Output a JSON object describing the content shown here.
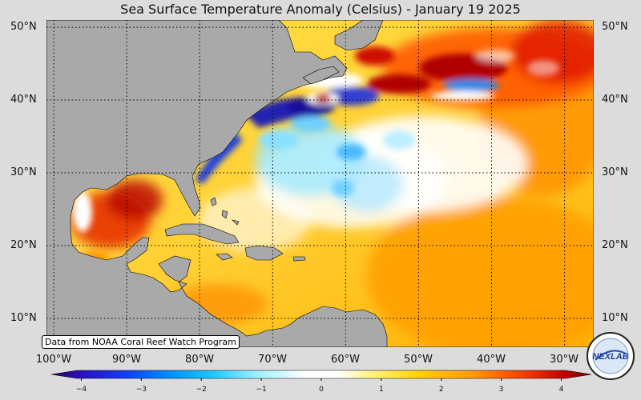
{
  "title": "Sea Surface Temperature Anomaly (Celsius) - January 19 2025",
  "credit": "Data from NOAA Coral Reef Watch Program",
  "logo_text": "NEXLAB",
  "map": {
    "projection": "plate-carree",
    "lon_range": [
      -101,
      -26
    ],
    "lat_range": [
      6,
      51
    ],
    "grid": "dotted",
    "land_color": "#a9a9a9",
    "lat_labels": [
      "50°N",
      "40°N",
      "30°N",
      "20°N",
      "10°N"
    ],
    "lon_labels": [
      "100°W",
      "90°W",
      "80°W",
      "70°W",
      "60°W",
      "50°W",
      "40°W",
      "30°W"
    ]
  },
  "colorbar": {
    "min": -4.5,
    "max": 4.5,
    "ticks": [
      "−4",
      "−3",
      "−2",
      "−1",
      "0",
      "1",
      "2",
      "3",
      "4"
    ],
    "colors": {
      "deep_negative": "#1a0a9a",
      "negative": "#0090ff",
      "near_zero": "#ffffff",
      "positive": "#ffd200",
      "deep_positive": "#b00000"
    }
  }
}
